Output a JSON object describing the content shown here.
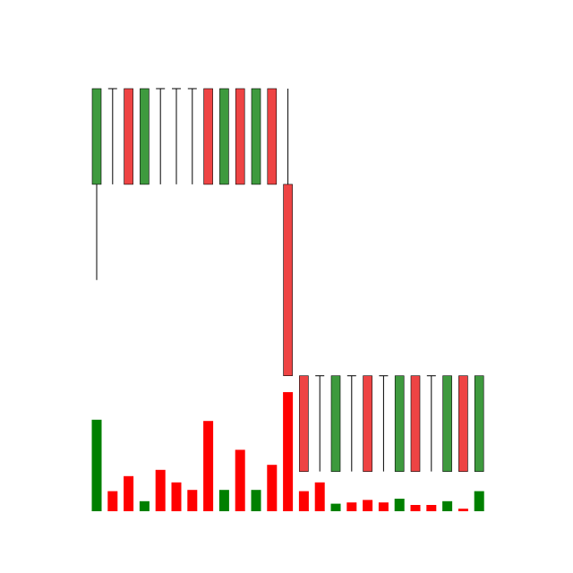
{
  "colors": {
    "up": "#3e9a3e",
    "down": "#ee4444",
    "volume_up": "#008000",
    "volume_down": "#ff0000",
    "wick": "#000000"
  },
  "chart_data": {
    "type": "candlestick",
    "title": "",
    "xlabel": "",
    "ylabel": "",
    "grid": false,
    "legend": "none",
    "price_range": [
      0,
      21
    ],
    "volume_range": [
      0,
      100
    ],
    "candles": [
      {
        "open": 16,
        "high": 21,
        "low": 11,
        "close": 21,
        "volume": 73
      },
      {
        "open": 16,
        "high": 21,
        "low": 16,
        "close": 16,
        "volume": 16
      },
      {
        "open": 21,
        "high": 21,
        "low": 16,
        "close": 16,
        "volume": 28
      },
      {
        "open": 16,
        "high": 21,
        "low": 16,
        "close": 21,
        "volume": 8
      },
      {
        "open": 16,
        "high": 21,
        "low": 16,
        "close": 16,
        "volume": 33
      },
      {
        "open": 16,
        "high": 21,
        "low": 16,
        "close": 16,
        "volume": 23
      },
      {
        "open": 16,
        "high": 21,
        "low": 16,
        "close": 16,
        "volume": 17
      },
      {
        "open": 21,
        "high": 21,
        "low": 16,
        "close": 16,
        "volume": 72
      },
      {
        "open": 16,
        "high": 21,
        "low": 16,
        "close": 21,
        "volume": 17
      },
      {
        "open": 21,
        "high": 21,
        "low": 16,
        "close": 16,
        "volume": 49
      },
      {
        "open": 16,
        "high": 21,
        "low": 16,
        "close": 21,
        "volume": 17
      },
      {
        "open": 21,
        "high": 21,
        "low": 16,
        "close": 16,
        "volume": 37
      },
      {
        "open": 16,
        "high": 21,
        "low": 6,
        "close": 6,
        "volume": 95
      },
      {
        "open": 6,
        "high": 6,
        "low": 1,
        "close": 1,
        "volume": 16
      },
      {
        "open": 1,
        "high": 6,
        "low": 1,
        "close": 1,
        "volume": 23
      },
      {
        "open": 1,
        "high": 6,
        "low": 1,
        "close": 6,
        "volume": 6
      },
      {
        "open": 1,
        "high": 6,
        "low": 1,
        "close": 1,
        "volume": 7
      },
      {
        "open": 6,
        "high": 6,
        "low": 1,
        "close": 1,
        "volume": 9
      },
      {
        "open": 1,
        "high": 6,
        "low": 1,
        "close": 1,
        "volume": 7
      },
      {
        "open": 1,
        "high": 6,
        "low": 1,
        "close": 6,
        "volume": 10
      },
      {
        "open": 6,
        "high": 6,
        "low": 1,
        "close": 1,
        "volume": 5
      },
      {
        "open": 1,
        "high": 6,
        "low": 1,
        "close": 1,
        "volume": 5
      },
      {
        "open": 1,
        "high": 6,
        "low": 1,
        "close": 6,
        "volume": 8
      },
      {
        "open": 6,
        "high": 6,
        "low": 1,
        "close": 1,
        "volume": 2
      },
      {
        "open": 1,
        "high": 6,
        "low": 1,
        "close": 6,
        "volume": 16
      }
    ]
  }
}
